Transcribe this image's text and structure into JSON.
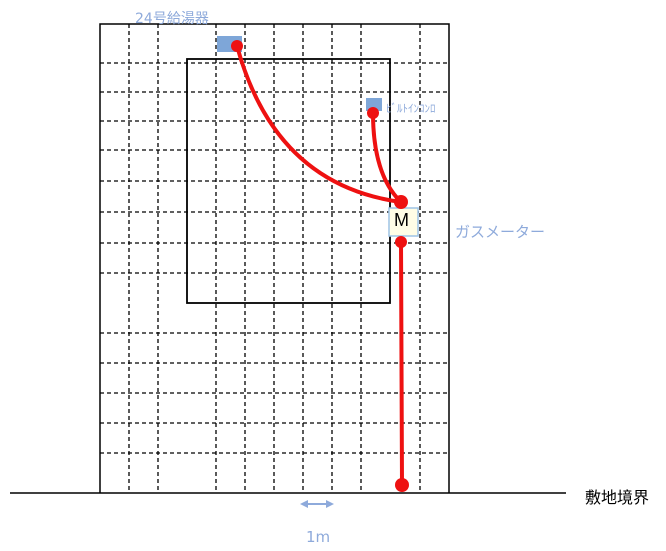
{
  "labels": {
    "water_heater": "24号給湯器",
    "builtin_stove": "ﾋﾞﾙﾄｲﾝｺﾝﾛ",
    "gas_meter": "ガスメーター",
    "meter_symbol": "M",
    "property_boundary": "敷地境界",
    "scale": "1m"
  },
  "colors": {
    "pipe": "#ee1111",
    "appliance": "#7ea6d8",
    "label_text": "#8eaadb",
    "meter_fill": "#fffde6",
    "meter_border": "#9dc3e6",
    "grid": "#000000"
  }
}
